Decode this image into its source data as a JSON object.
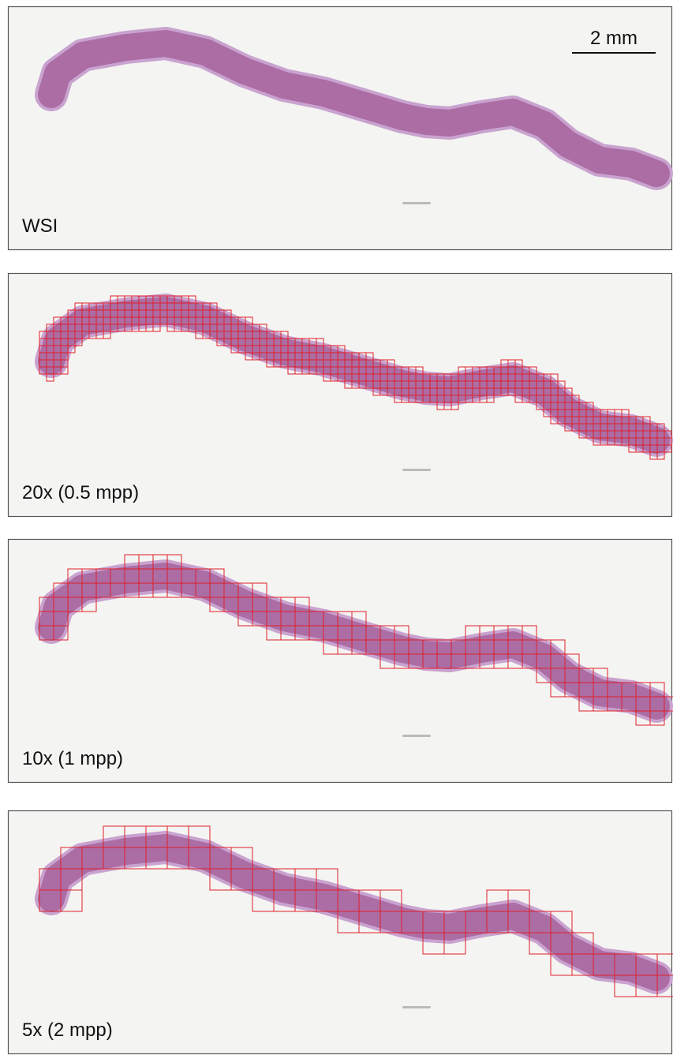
{
  "scale_bar": {
    "label": "2 mm"
  },
  "panels": [
    {
      "label": "WSI"
    },
    {
      "label": "20x (0.5 mpp)"
    },
    {
      "label": "10x (1 mpp)"
    },
    {
      "label": "5x (2 mpp)"
    }
  ]
}
